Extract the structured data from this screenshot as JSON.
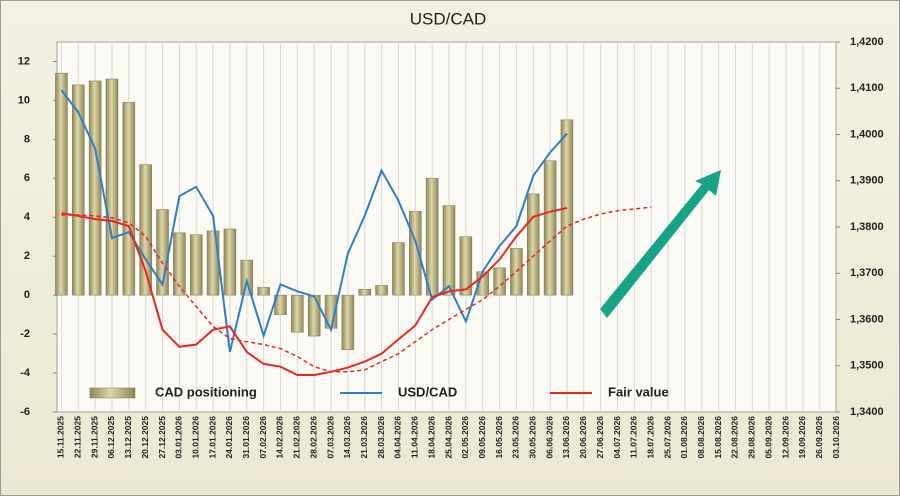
{
  "chart_data": {
    "type": "bar-line",
    "title": "USD/CAD",
    "categories": [
      "15.11.2025",
      "22.11.2025",
      "29.11.2025",
      "06.12.2025",
      "13.12.2025",
      "20.12.2025",
      "27.12.2025",
      "03.01.2026",
      "10.01.2026",
      "17.01.2026",
      "24.01.2026",
      "31.01.2026",
      "07.02.2026",
      "14.02.2026",
      "21.02.2026",
      "28.02.2026",
      "07.03.2026",
      "14.03.2026",
      "21.03.2026",
      "28.03.2026",
      "04.04.2026",
      "11.04.2026",
      "18.04.2026",
      "25.04.2026",
      "02.05.2026",
      "09.05.2026",
      "16.05.2026",
      "23.05.2026",
      "30.05.2026",
      "06.06.2026",
      "13.06.2026",
      "20.06.2026",
      "27.06.2026",
      "04.07.2026",
      "11.07.2026",
      "18.07.2026",
      "25.07.2026",
      "01.08.2026",
      "08.08.2026",
      "15.08.2026",
      "22.08.2026",
      "29.08.2026",
      "05.09.2026",
      "12.09.2026",
      "19.09.2026",
      "26.09.2026",
      "03.10.2026"
    ],
    "series": [
      {
        "name": "CAD positioning",
        "kind": "bar",
        "color": "#b8b07a",
        "axis": "y",
        "values": [
          11.4,
          10.8,
          11.0,
          11.1,
          9.9,
          6.7,
          4.4,
          3.2,
          3.1,
          3.3,
          3.4,
          1.8,
          0.4,
          -1.0,
          -1.9,
          -2.1,
          -1.7,
          -2.8,
          0.3,
          0.5,
          2.7,
          4.3,
          6.0,
          4.6,
          3.0,
          1.2,
          1.4,
          2.4,
          5.2,
          6.9,
          9.0,
          null,
          null,
          null,
          null,
          null,
          null,
          null,
          null,
          null,
          null,
          null,
          null,
          null,
          null,
          null,
          null
        ]
      },
      {
        "name": "USD/CAD",
        "kind": "line",
        "color": "#2f7fc8",
        "axis": "y2",
        "values": [
          1.4096,
          1.4048,
          1.397,
          1.3776,
          1.3789,
          1.373,
          1.3676,
          1.3867,
          1.3887,
          1.3824,
          1.353,
          1.3683,
          1.3565,
          1.3676,
          1.3661,
          1.365,
          1.3578,
          1.3743,
          1.3824,
          1.3922,
          1.3857,
          1.377,
          1.3643,
          1.3672,
          1.3596,
          1.3704,
          1.3759,
          1.3802,
          1.3911,
          1.3961,
          1.4002,
          null,
          null,
          null,
          null,
          null,
          null,
          null,
          null,
          null,
          null,
          null,
          null,
          null,
          null,
          null,
          null
        ]
      },
      {
        "name": "Fair value",
        "kind": "line",
        "color": "#e8281e",
        "axis": "y2",
        "values": [
          1.383,
          1.3824,
          1.3817,
          1.3813,
          1.3802,
          1.3704,
          1.3578,
          1.3541,
          1.3546,
          1.3578,
          1.3585,
          1.353,
          1.3504,
          1.3498,
          1.348,
          1.348,
          1.3487,
          1.3496,
          1.3509,
          1.3526,
          1.3557,
          1.3587,
          1.3648,
          1.3661,
          1.3665,
          1.3693,
          1.373,
          1.378,
          1.3822,
          1.3833,
          1.3841,
          null,
          null,
          null,
          null,
          null,
          null,
          null,
          null,
          null,
          null,
          null,
          null,
          null,
          null,
          null,
          null
        ]
      },
      {
        "kind": "line",
        "dashed": true,
        "color": "#e8281e",
        "axis": "y2",
        "values": [
          1.3826,
          1.3826,
          1.3824,
          1.382,
          1.3809,
          1.378,
          1.3722,
          1.3672,
          1.3628,
          1.3585,
          1.3559,
          1.3552,
          1.3546,
          1.3537,
          1.352,
          1.3498,
          1.3487,
          1.3487,
          1.3491,
          1.3509,
          1.3526,
          1.3552,
          1.3578,
          1.36,
          1.3622,
          1.3643,
          1.3672,
          1.3704,
          1.3737,
          1.377,
          1.3802,
          1.3817,
          1.3828,
          1.3835,
          1.3839,
          1.3843,
          null,
          null,
          null,
          null,
          null,
          null,
          null,
          null,
          null,
          null,
          null
        ]
      }
    ],
    "ylim": [
      -6,
      13
    ],
    "yticks": [
      -6,
      -4,
      -2,
      0,
      2,
      4,
      6,
      8,
      10,
      12
    ],
    "y2lim": [
      1.34,
      1.42
    ],
    "y2ticks": [
      {
        "value": 1.34,
        "label": "1,3400"
      },
      {
        "value": 1.35,
        "label": "1,3500"
      },
      {
        "value": 1.36,
        "label": "1,3600"
      },
      {
        "value": 1.37,
        "label": "1,3700"
      },
      {
        "value": 1.38,
        "label": "1,3800"
      },
      {
        "value": 1.39,
        "label": "1,3900"
      },
      {
        "value": 1.4,
        "label": "1,4000"
      },
      {
        "value": 1.41,
        "label": "1,4100"
      },
      {
        "value": 1.42,
        "label": "1,4200"
      }
    ],
    "grid": true,
    "legend": "bottom"
  }
}
